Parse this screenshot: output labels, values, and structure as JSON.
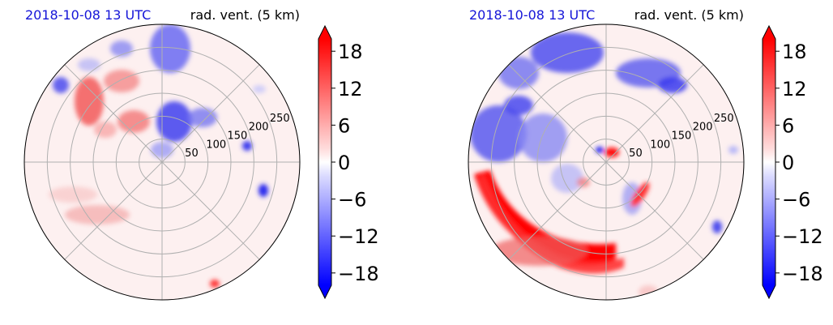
{
  "panels": [
    {
      "id": "left",
      "title_left": "2018-10-08 13 UTC",
      "title_right": "rad. vent. (5 km)"
    },
    {
      "id": "right",
      "title_left": "2018-10-08 13 UTC",
      "title_right": "rad. vent. (5 km)"
    }
  ],
  "chart_data": [
    {
      "type": "heatmap",
      "projection": "polar",
      "title_left": "2018-10-08 13 UTC",
      "title_right": "rad. vent. (5 km)",
      "radial_ticks": [
        "50",
        "100",
        "150",
        "200",
        "250"
      ],
      "r_max": 300,
      "radial_tick_values": [
        50,
        100,
        150,
        200,
        250,
        300
      ],
      "angular_gridlines_deg": [
        0,
        45,
        90,
        135,
        180,
        225,
        270,
        315
      ],
      "grid": true,
      "colorbar": {
        "ticks": [
          "18",
          "12",
          "6",
          "0",
          "−6",
          "−12",
          "−18"
        ],
        "tick_values": [
          18,
          12,
          6,
          0,
          -6,
          -12,
          -18
        ],
        "range": [
          -20,
          20
        ],
        "extend": "both",
        "colormap": "bwr"
      }
    },
    {
      "type": "heatmap",
      "projection": "polar",
      "title_left": "2018-10-08 13 UTC",
      "title_right": "rad. vent. (5 km)",
      "radial_ticks": [
        "50",
        "100",
        "150",
        "200",
        "250"
      ],
      "r_max": 300,
      "radial_tick_values": [
        50,
        100,
        150,
        200,
        250,
        300
      ],
      "angular_gridlines_deg": [
        0,
        45,
        90,
        135,
        180,
        225,
        270,
        315
      ],
      "grid": true,
      "colorbar": {
        "ticks": [
          "18",
          "12",
          "6",
          "0",
          "−6",
          "−12",
          "−18"
        ],
        "tick_values": [
          18,
          12,
          6,
          0,
          -6,
          -12,
          -18
        ],
        "range": [
          -20,
          20
        ],
        "extend": "both",
        "colormap": "bwr"
      }
    }
  ],
  "colors": {
    "positive": "#ff0000",
    "negative": "#0000ff",
    "neutral": "#ffffff",
    "grid": "#b0b0b0",
    "title_left": "#1515d8"
  }
}
